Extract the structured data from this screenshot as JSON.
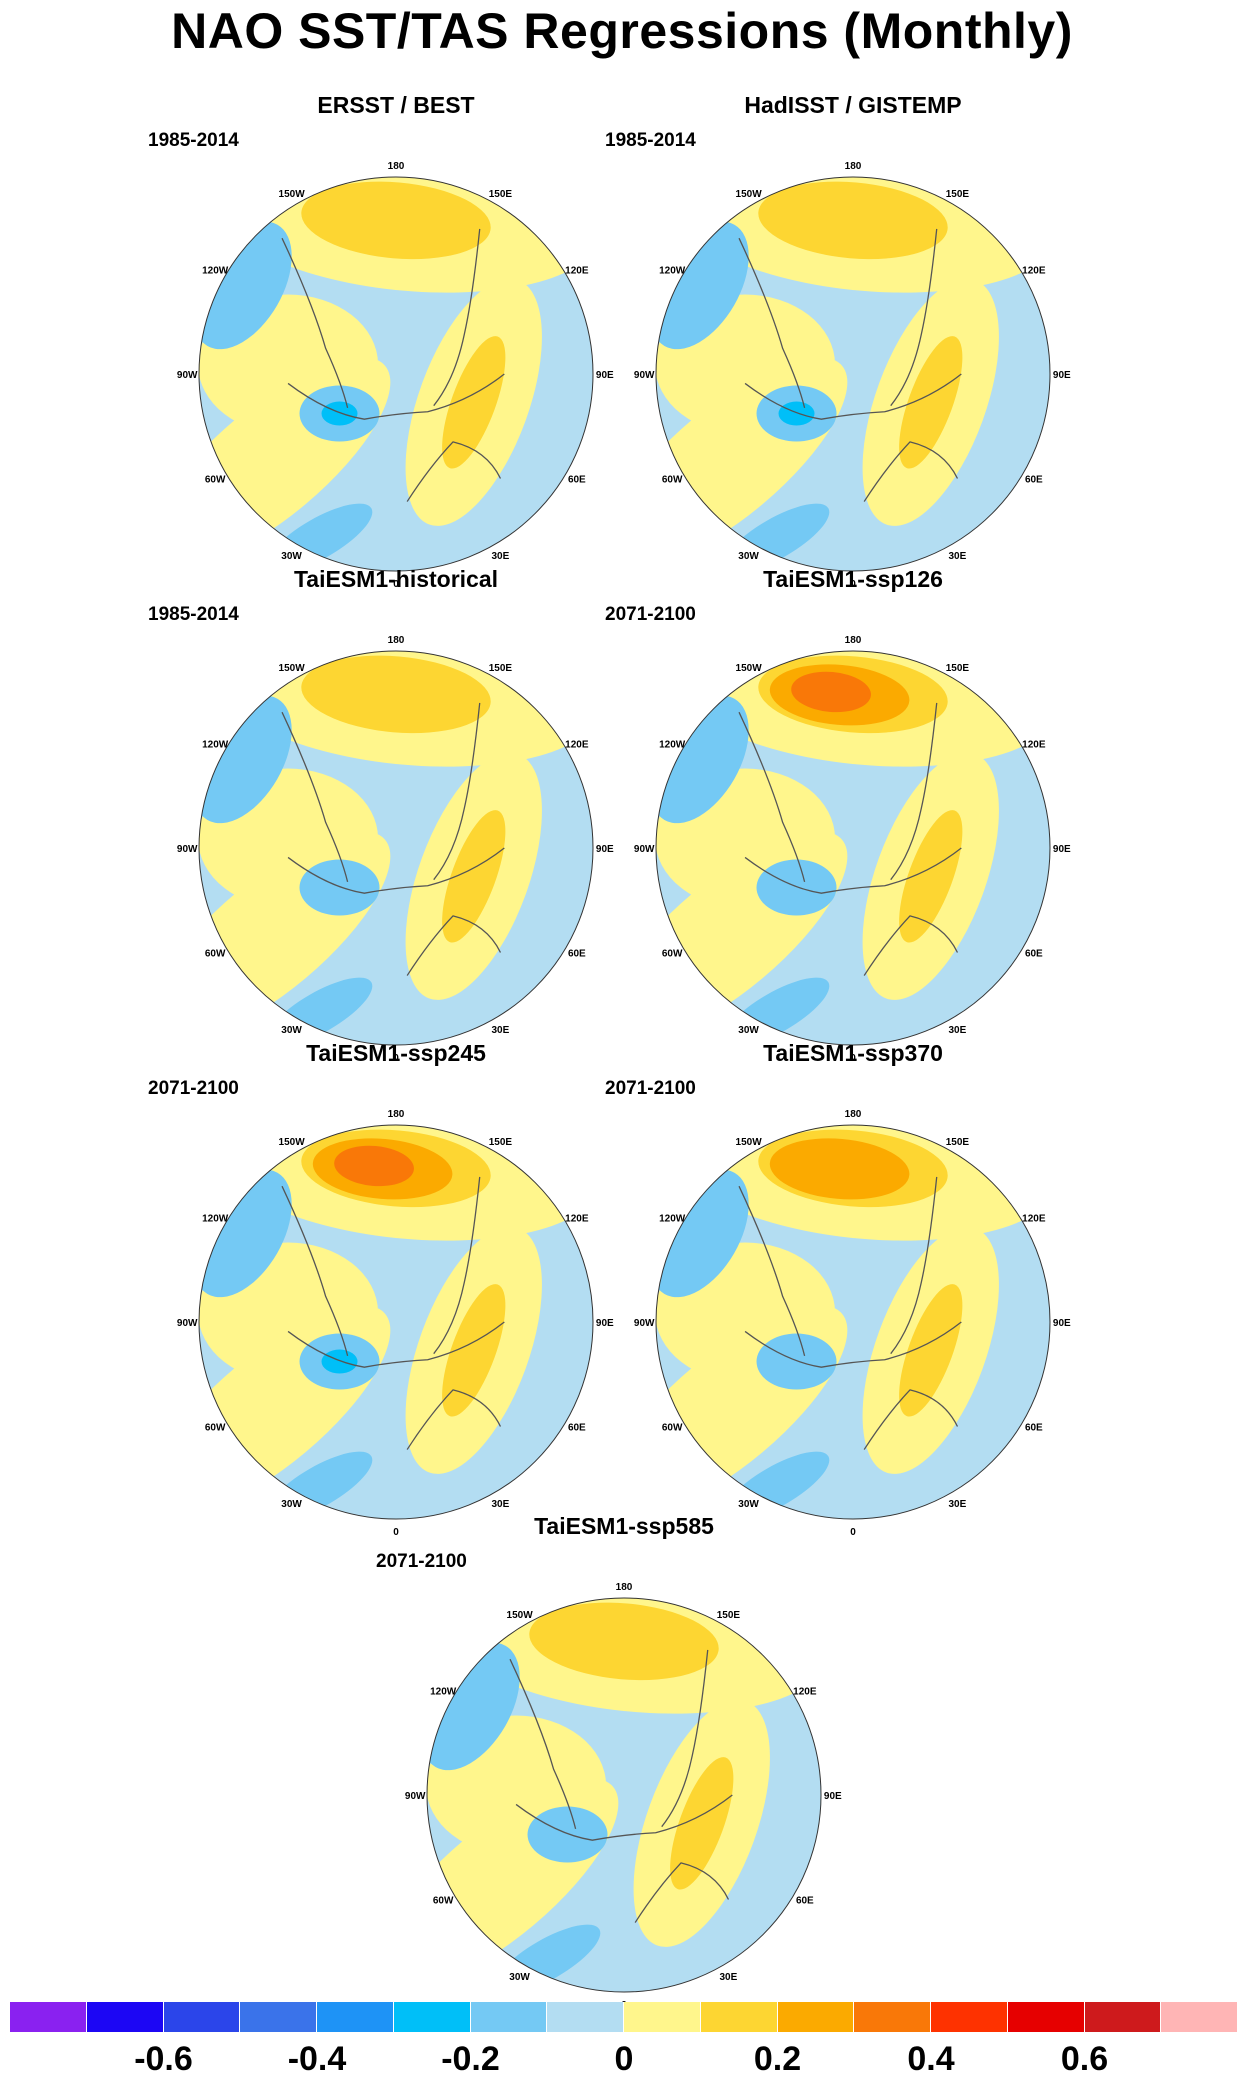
{
  "title": "NAO SST/TAS Regressions (Monthly)",
  "longitude_labels": [
    "180",
    "150E",
    "120E",
    "90E",
    "60E",
    "30E",
    "0",
    "30W",
    "60W",
    "90W",
    "120W",
    "150W"
  ],
  "panels": [
    {
      "title": "ERSST / BEST",
      "period": "1985-2014",
      "pacific_warm": 0.15,
      "atlantic_cold": -0.3
    },
    {
      "title": "HadISST / GISTEMP",
      "period": "1985-2014",
      "pacific_warm": 0.12,
      "atlantic_cold": -0.25
    },
    {
      "title": "TaiESM1-historical",
      "period": "1985-2014",
      "pacific_warm": 0.15,
      "atlantic_cold": -0.2
    },
    {
      "title": "TaiESM1-ssp126",
      "period": "2071-2100",
      "pacific_warm": 0.4,
      "atlantic_cold": -0.2
    },
    {
      "title": "TaiESM1-ssp245",
      "period": "2071-2100",
      "pacific_warm": 0.4,
      "atlantic_cold": -0.25
    },
    {
      "title": "TaiESM1-ssp370",
      "period": "2071-2100",
      "pacific_warm": 0.35,
      "atlantic_cold": -0.2
    },
    {
      "title": "TaiESM1-ssp585",
      "period": "2071-2100",
      "pacific_warm": 0.2,
      "atlantic_cold": -0.2
    }
  ],
  "colorbar": {
    "colors": [
      "#8a21f0",
      "#1c06f4",
      "#2b45ea",
      "#3a73ea",
      "#1e93f6",
      "#00bff8",
      "#74c9f4",
      "#b3ddf2",
      "#fff68c",
      "#fdd632",
      "#fbaa00",
      "#f97808",
      "#fe3200",
      "#e60000",
      "#ce1a1c",
      "#ffb5b5"
    ],
    "tick_labels": [
      "-0.6",
      "-0.4",
      "-0.2",
      "0",
      "0.2",
      "0.4",
      "0.6"
    ]
  }
}
